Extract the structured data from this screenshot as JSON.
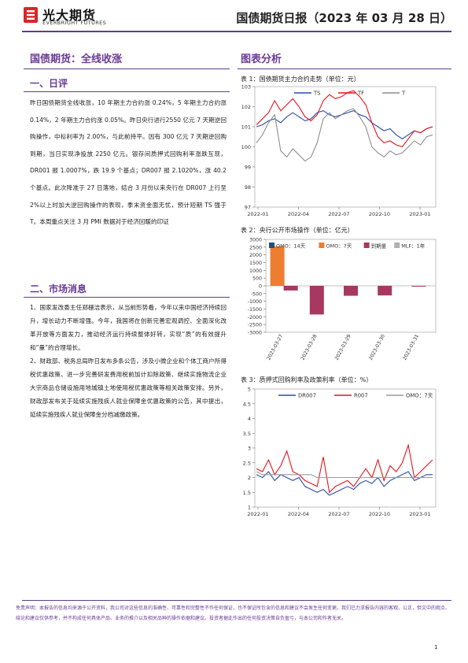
{
  "header": {
    "brand_cn": "光大期货",
    "brand_en": "EVERBRIGHT FUTURES",
    "doc_title": "国债期货日报（2023 年 03 月 28 日）"
  },
  "main": {
    "report_title": "国债期货：全线收涨",
    "section1_heading": "一、日评",
    "section1_body": "昨日国债期货全线收涨，10 年期主力合约涨 0.24%，5 年期主力合约涨 0.14%，2 年期主力合约涨 0.05%。昨日央行进行2550 亿元 7 天期逆回购操作，中标利率为 2.00%，与此前持平。因有 300 亿元 7 天期逆回购到期，当日实现净投放 2250 亿元。银存间质押式回购利率涨跌互现，DR001 报 1.0007%，跌 19.9 个基点；DR007 报 2.1020%，涨 40.2 个基点。此次降准于 27 日落地，结合 3 月份以来央行在 DR007 上行至 2%以上时加大逆回购操作的表现，季末资金面无忧，预计短期 TS 强于 T。本周重点关注 3 月 PMI 数据对于经济回暖的印证",
    "section2_heading": "二、市场消息",
    "section2_p1": "1、国家发改委主任郑栅洁表示，从当前形势看，今年以来中国经济持续回升，增长动力不断增强。今年，我国将在创新完善宏观调控、全面深化改革开放等方面发力，推动经济运行持续整体好转，实现“质”的有效提升和“量”的合理增长。",
    "section2_p2": "2、财政部、税务总局昨日发布多条公告，涉及小微企业和个体工商户所得税优惠政策、进一步完善研发费用税前加计扣除政策、继续实施物流企业大宗商品仓储设施用地城镇土地使用税优惠政策等相关政策安排。另外，财政部发布关于延续实施残疾人就业保障金优惠政策的公告，其中提出，延续实施残疾人就业保障金分档减缴政策。"
  },
  "charts_panel": {
    "heading": "图表分析"
  },
  "chart_data": [
    {
      "type": "line",
      "caption": "表 1：国债期货主力合约走势（单位：元）",
      "x_ticks": [
        "2022-01",
        "2022-04",
        "2022-07",
        "2022-10",
        "2023-01"
      ],
      "ylim": [
        97,
        103
      ],
      "y_ticks": [
        97,
        98,
        99,
        100,
        101,
        102,
        103
      ],
      "series": [
        {
          "name": "TS",
          "color": "#2b4aa8",
          "values": [
            101.0,
            101.1,
            101.3,
            101.4,
            101.2,
            101.5,
            101.7,
            101.5,
            101.3,
            101.4,
            101.7,
            101.8,
            101.6,
            101.5,
            101.6,
            101.7,
            101.8,
            101.6,
            101.5,
            101.2,
            101.0,
            100.8,
            100.9,
            100.6,
            100.4,
            100.6,
            100.8,
            100.7,
            100.9,
            101.0
          ]
        },
        {
          "name": "TF",
          "color": "#e3141b",
          "values": [
            101.1,
            101.4,
            101.7,
            102.3,
            101.8,
            102.1,
            102.4,
            102.0,
            101.5,
            101.3,
            101.6,
            102.3,
            102.6,
            102.4,
            102.5,
            102.7,
            102.8,
            102.5,
            102.1,
            101.2,
            100.5,
            100.2,
            100.3,
            100.1,
            100.0,
            100.4,
            100.8,
            100.7,
            100.9,
            101.0
          ]
        },
        {
          "name": "T",
          "color": "#8e8e8e",
          "values": [
            100.2,
            100.6,
            101.2,
            101.6,
            99.8,
            99.5,
            99.9,
            99.6,
            99.3,
            99.5,
            100.2,
            101.4,
            101.7,
            101.4,
            101.6,
            101.8,
            101.9,
            101.5,
            101.0,
            100.0,
            99.7,
            99.5,
            99.8,
            99.6,
            99.7,
            100.0,
            100.3,
            100.1,
            100.5,
            100.6
          ]
        }
      ]
    },
    {
      "type": "bar",
      "caption": "表 2：央行公开市场操作（单位：亿元）",
      "categories": [
        "2023-03-27",
        "2023-03-28",
        "2023-03-29",
        "2023-03-30",
        "2023-03-31"
      ],
      "ylim": [
        -3000,
        3000
      ],
      "y_ticks": [
        3000,
        2500,
        2000,
        1500,
        1000,
        500,
        0,
        -500,
        -1000,
        -1500,
        -2000,
        -2500,
        -3000
      ],
      "series": [
        {
          "name": "OMO：14天",
          "color": "#1f4e79",
          "values": [
            0,
            0,
            0,
            0,
            0
          ]
        },
        {
          "name": "OMO：7天",
          "color": "#ed7d31",
          "values": [
            2550,
            0,
            0,
            0,
            0
          ]
        },
        {
          "name": "到期量",
          "color": "#a8385f",
          "values": [
            -300,
            -1850,
            -640,
            -620,
            -50
          ]
        },
        {
          "name": "MLF：1年",
          "color": "#b0b0b0",
          "values": [
            0,
            0,
            0,
            0,
            0
          ]
        }
      ]
    },
    {
      "type": "line",
      "caption": "表 3：质押式回购利率及政策利率（单位：%）",
      "x_ticks": [
        "2022-01",
        "2022-04",
        "2022-07",
        "2022-10",
        "2023-01"
      ],
      "ylim": [
        1,
        5
      ],
      "y_ticks": [
        1,
        1.5,
        2,
        2.5,
        3,
        3.5,
        4,
        4.5,
        5
      ],
      "series": [
        {
          "name": "DR007",
          "color": "#2b4aa8",
          "values": [
            2.1,
            2.0,
            2.2,
            1.9,
            2.1,
            2.0,
            1.9,
            2.0,
            1.7,
            1.6,
            1.5,
            1.6,
            1.4,
            1.5,
            1.6,
            1.7,
            1.6,
            1.8,
            1.9,
            1.8,
            2.0,
            1.7,
            1.9,
            2.0,
            2.1,
            2.2,
            1.9,
            2.0,
            2.1,
            2.1
          ]
        },
        {
          "name": "R007",
          "color": "#e3141b",
          "values": [
            2.3,
            2.2,
            2.6,
            2.1,
            2.4,
            2.9,
            2.2,
            2.1,
            1.9,
            1.8,
            1.7,
            2.7,
            1.5,
            1.7,
            1.8,
            1.9,
            1.7,
            2.0,
            2.3,
            2.0,
            2.6,
            1.9,
            2.4,
            2.2,
            2.5,
            3.1,
            2.0,
            2.2,
            2.4,
            2.6
          ]
        },
        {
          "name": "OMO：7天",
          "color": "#9a9a9a",
          "values": [
            2.2,
            2.1,
            2.1,
            2.1,
            2.1,
            2.1,
            2.1,
            2.1,
            2.1,
            2.1,
            2.0,
            2.0,
            2.0,
            2.0,
            2.0,
            2.0,
            2.0,
            2.0,
            2.0,
            2.0,
            2.0,
            2.0,
            2.0,
            2.0,
            2.0,
            2.0,
            2.0,
            2.0,
            2.0,
            2.0
          ]
        }
      ]
    }
  ],
  "footer": {
    "disclaimer": "免责声明：本报告的信息均来源于公开资料，我公司对这些信息的准确性、可靠性和完整性不作任何保证，也不保证所包含的信息和建议不会发生任何变更。我们已力求报告内容的客观、公正，但文中的观点、结论和建议仅供参考，并不构成任何具体产品、业务的推介以及相关品种的操作依据和建议。投资者据此作出的任何投资决策自负盈亏，与本公司和作者无关。",
    "page_number": "1"
  }
}
